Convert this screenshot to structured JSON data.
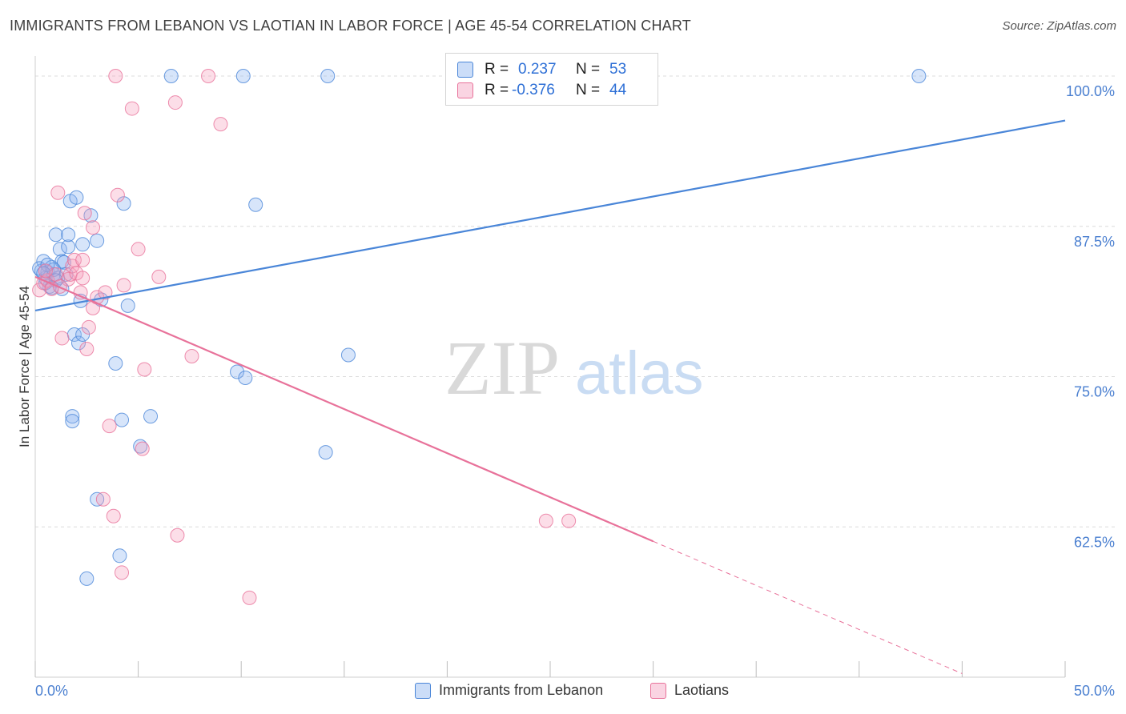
{
  "header": {
    "title": "IMMIGRANTS FROM LEBANON VS LAOTIAN IN LABOR FORCE | AGE 45-54 CORRELATION CHART",
    "source": "Source: ZipAtlas.com"
  },
  "watermark": {
    "zip": "ZIP",
    "atlas": "atlas"
  },
  "legend": {
    "rows": [
      {
        "r_label": "R =",
        "r_value": "0.237",
        "n_label": "N =",
        "n_value": "53",
        "color": "#4a86d8"
      },
      {
        "r_label": "R =",
        "r_value": "-0.376",
        "n_label": "N =",
        "n_value": "44",
        "color": "#e8729a"
      }
    ]
  },
  "bottom_legend": {
    "series1": "Immigrants from Lebanon",
    "series2": "Laotians"
  },
  "chart_data": {
    "type": "scatter",
    "title": "IMMIGRANTS FROM LEBANON VS LAOTIAN IN LABOR FORCE | AGE 45-54 CORRELATION CHART",
    "ylabel": "In Labor Force | Age 45-54",
    "xlabel": "",
    "xlim": [
      0,
      50
    ],
    "ylim": [
      50,
      101
    ],
    "x_tick_labels": [
      "0.0%",
      "50.0%"
    ],
    "y_ticks": [
      62.5,
      75.0,
      87.5,
      100.0
    ],
    "y_tick_labels": [
      "62.5%",
      "75.0%",
      "87.5%",
      "100.0%"
    ],
    "grid": "horizontal dashed",
    "series": [
      {
        "name": "Immigrants from Lebanon",
        "color": "#4a86d8",
        "fill": "rgba(140,180,240,0.35)",
        "trend": {
          "x": [
            0,
            50
          ],
          "y": [
            80.5,
            96.3
          ]
        },
        "points": [
          [
            0.3,
            83.8
          ],
          [
            0.4,
            84.6
          ],
          [
            0.5,
            83.2
          ],
          [
            0.6,
            83.7
          ],
          [
            0.7,
            82.5
          ],
          [
            0.8,
            84.1
          ],
          [
            0.9,
            83.5
          ],
          [
            1.0,
            86.8
          ],
          [
            1.1,
            83.2
          ],
          [
            1.2,
            85.6
          ],
          [
            1.3,
            84.6
          ],
          [
            1.4,
            84.5
          ],
          [
            1.5,
            83.5
          ],
          [
            1.3,
            82.3
          ],
          [
            1.6,
            85.8
          ],
          [
            1.6,
            86.8
          ],
          [
            1.7,
            89.6
          ],
          [
            1.8,
            71.7
          ],
          [
            1.8,
            71.3
          ],
          [
            1.9,
            78.5
          ],
          [
            2.0,
            89.9
          ],
          [
            2.1,
            77.8
          ],
          [
            2.2,
            81.3
          ],
          [
            2.3,
            86.0
          ],
          [
            2.3,
            78.5
          ],
          [
            2.7,
            88.4
          ],
          [
            2.5,
            58.2
          ],
          [
            3.0,
            86.3
          ],
          [
            3.0,
            64.8
          ],
          [
            3.2,
            81.4
          ],
          [
            3.9,
            76.1
          ],
          [
            4.1,
            60.1
          ],
          [
            4.2,
            71.4
          ],
          [
            4.3,
            89.4
          ],
          [
            4.5,
            80.9
          ],
          [
            5.1,
            69.2
          ],
          [
            5.6,
            71.7
          ],
          [
            6.6,
            100.0
          ],
          [
            9.8,
            75.4
          ],
          [
            10.2,
            74.9
          ],
          [
            10.1,
            100.0
          ],
          [
            10.7,
            89.3
          ],
          [
            14.2,
            100.0
          ],
          [
            14.1,
            68.7
          ],
          [
            15.2,
            76.8
          ],
          [
            42.9,
            100.0
          ],
          [
            0.2,
            84.0
          ],
          [
            0.5,
            82.8
          ],
          [
            0.9,
            83.9
          ],
          [
            0.6,
            84.3
          ],
          [
            1.0,
            83.0
          ],
          [
            0.4,
            83.6
          ],
          [
            0.8,
            82.4
          ]
        ]
      },
      {
        "name": "Laotians",
        "color": "#e8729a",
        "fill": "rgba(245,160,190,0.35)",
        "trend": {
          "x": [
            0,
            30
          ],
          "y": [
            83.3,
            61.3
          ]
        },
        "trend_dashed": {
          "x": [
            30,
            45
          ],
          "y": [
            61.3,
            50.3
          ]
        },
        "points": [
          [
            0.2,
            82.2
          ],
          [
            0.4,
            82.8
          ],
          [
            0.6,
            83.0
          ],
          [
            0.8,
            82.3
          ],
          [
            1.0,
            83.5
          ],
          [
            1.1,
            90.3
          ],
          [
            1.3,
            78.2
          ],
          [
            1.6,
            83.1
          ],
          [
            1.7,
            83.5
          ],
          [
            1.8,
            84.2
          ],
          [
            1.9,
            84.7
          ],
          [
            2.0,
            83.6
          ],
          [
            2.2,
            82.0
          ],
          [
            2.3,
            84.7
          ],
          [
            2.3,
            83.2
          ],
          [
            2.4,
            88.6
          ],
          [
            2.5,
            77.3
          ],
          [
            2.6,
            79.1
          ],
          [
            2.8,
            87.4
          ],
          [
            2.8,
            80.7
          ],
          [
            3.0,
            81.6
          ],
          [
            3.3,
            64.8
          ],
          [
            3.4,
            82.0
          ],
          [
            3.6,
            70.9
          ],
          [
            3.8,
            63.4
          ],
          [
            3.9,
            100.0
          ],
          [
            4.0,
            90.1
          ],
          [
            4.2,
            58.7
          ],
          [
            4.3,
            82.6
          ],
          [
            4.7,
            97.3
          ],
          [
            5.0,
            85.6
          ],
          [
            5.2,
            69.0
          ],
          [
            5.3,
            75.6
          ],
          [
            6.0,
            83.3
          ],
          [
            6.8,
            97.8
          ],
          [
            6.9,
            61.8
          ],
          [
            7.6,
            76.7
          ],
          [
            8.4,
            100.0
          ],
          [
            9.0,
            96.0
          ],
          [
            10.4,
            56.6
          ],
          [
            24.8,
            63.0
          ],
          [
            25.9,
            63.0
          ],
          [
            0.5,
            83.8
          ],
          [
            1.2,
            82.5
          ]
        ]
      }
    ]
  }
}
